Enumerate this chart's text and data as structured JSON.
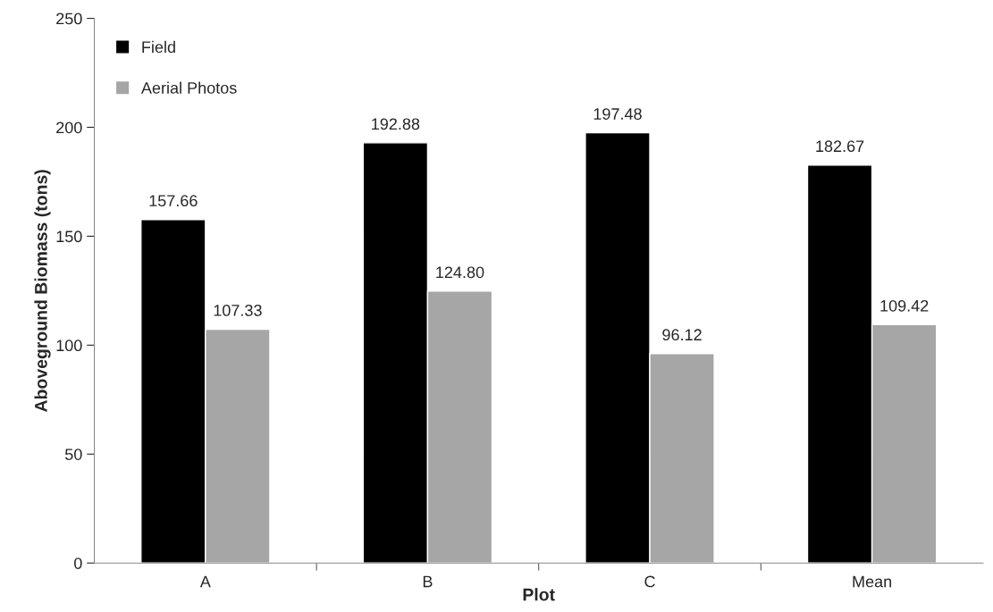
{
  "chart_data": {
    "type": "bar",
    "xlabel": "Plot",
    "ylabel": "Aboveground Biomass (tons)",
    "categories": [
      "A",
      "B",
      "C",
      "Mean"
    ],
    "series": [
      {
        "name": "Field",
        "color": "#000000",
        "values": [
          157.66,
          192.88,
          197.48,
          182.67
        ],
        "value_labels": [
          "157.66",
          "192.88",
          "197.48",
          "182.67"
        ]
      },
      {
        "name": "Aerial Photos",
        "color": "#a6a6a6",
        "values": [
          107.33,
          124.8,
          96.12,
          109.42
        ],
        "value_labels": [
          "107.33",
          "124.80",
          "96.12",
          "109.42"
        ]
      }
    ],
    "ylim": [
      0,
      250
    ],
    "yticks": [
      0,
      50,
      100,
      150,
      200,
      250
    ],
    "grid": false,
    "legend": "top left"
  }
}
